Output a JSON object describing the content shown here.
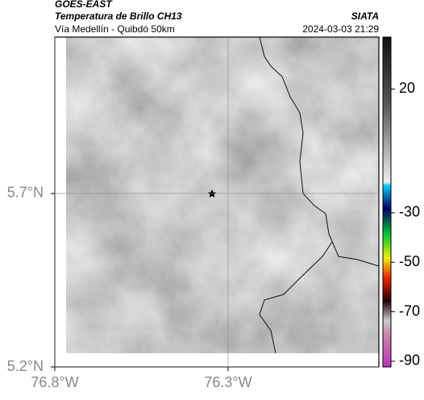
{
  "header": {
    "source": "GOES-EAST",
    "product": "Temperatura de Brillo CH13",
    "region": "Vía Medellín - Quibdó 50km",
    "agency": "SIATA",
    "datetime": "2024-03-03 21:29"
  },
  "map": {
    "xlim": [
      -76.8,
      -75.865
    ],
    "ylim": [
      5.2,
      6.151
    ],
    "xticks": [
      {
        "value": -76.8,
        "label": "76.8°W"
      },
      {
        "value": -76.3,
        "label": "76.3°W"
      }
    ],
    "yticks": [
      {
        "value": 5.2,
        "label": "5.2°N"
      },
      {
        "value": 5.7,
        "label": "5.7°N"
      }
    ],
    "grid": true
  },
  "colorbar": {
    "clim": [
      -92.3,
      41
    ],
    "ticks": [
      20,
      -30,
      -50,
      -70,
      -90
    ]
  }
}
